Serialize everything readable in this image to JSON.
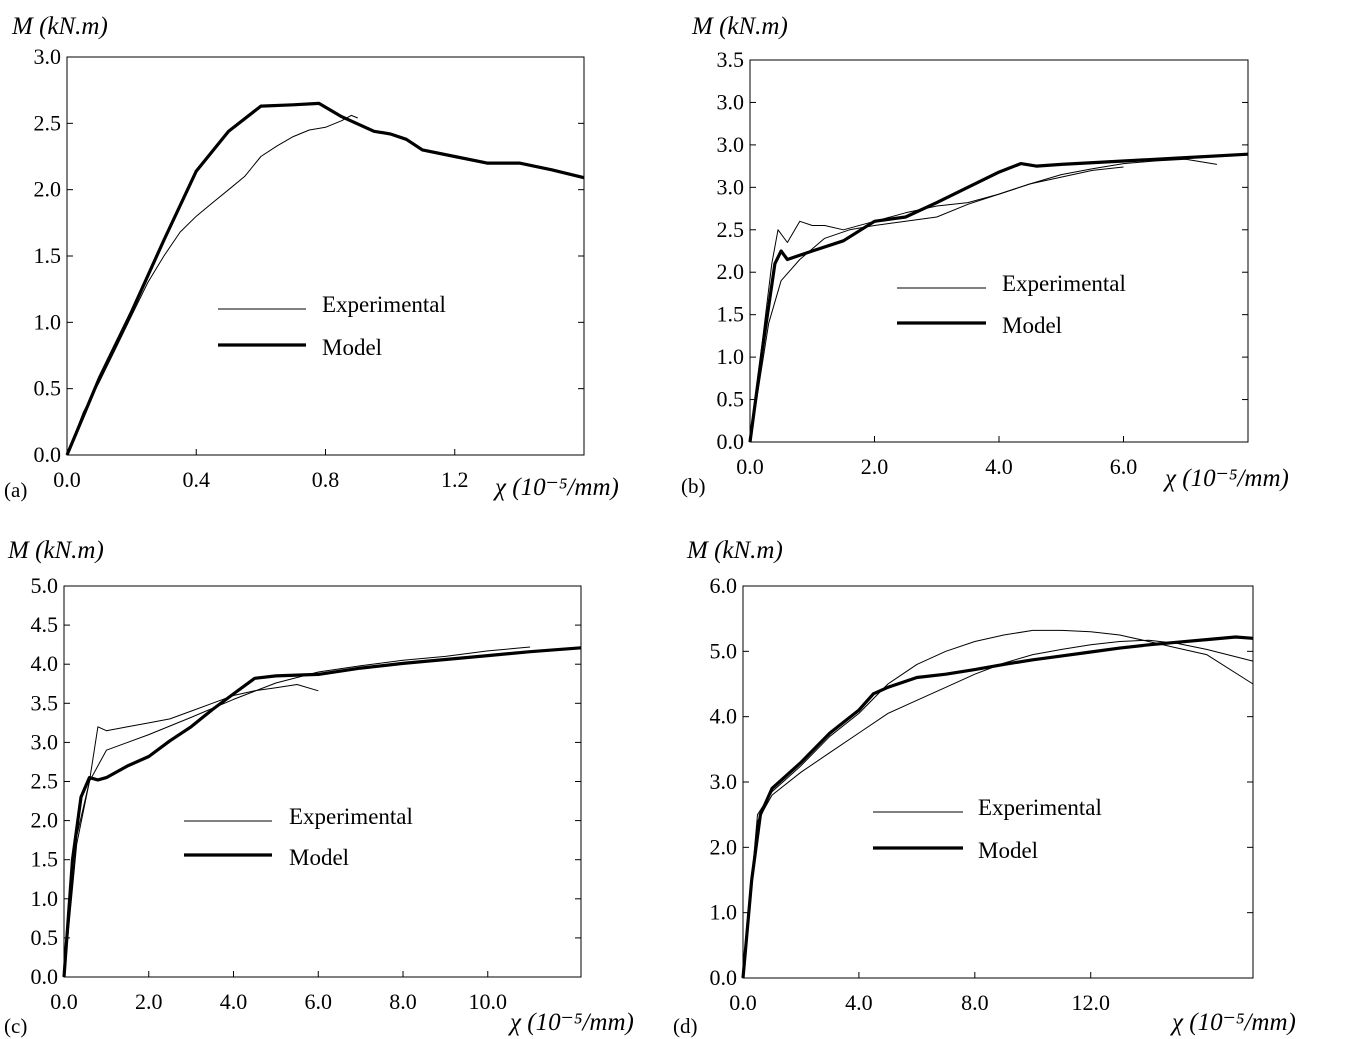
{
  "figure": {
    "panels": [
      {
        "id": "a",
        "panel_label": "(a)",
        "y_label": "M (kN.m)",
        "x_label": "χ (10⁻⁵/mm)",
        "x_ticks": [
          "0.0",
          "0.4",
          "0.8",
          "1.2"
        ],
        "y_ticks": [
          "0.0",
          "0.5",
          "1.0",
          "1.5",
          "2.0",
          "2.5",
          "3.0"
        ],
        "legend": [
          "Experimental",
          "Model"
        ]
      },
      {
        "id": "b",
        "panel_label": "(b)",
        "y_label": "M (kN.m)",
        "x_label": "χ (10⁻⁵/mm)",
        "x_ticks": [
          "0.0",
          "2.0",
          "4.0",
          "6.0"
        ],
        "y_ticks": [
          "0.0",
          "0.5",
          "1.0",
          "1.5",
          "2.0",
          "2.5",
          "3.0",
          "3.0",
          "3.0",
          "3.5"
        ],
        "legend": [
          "Experimental",
          "Model"
        ]
      },
      {
        "id": "c",
        "panel_label": "(c)",
        "y_label": "M (kN.m)",
        "x_label": "χ (10⁻⁵/mm)",
        "x_ticks": [
          "0.0",
          "2.0",
          "4.0",
          "6.0",
          "8.0",
          "10.0"
        ],
        "y_ticks": [
          "0.0",
          "0.5",
          "1.0",
          "1.5",
          "2.0",
          "2.5",
          "3.0",
          "3.5",
          "4.0",
          "4.5",
          "5.0"
        ],
        "legend": [
          "Experimental",
          "Model"
        ]
      },
      {
        "id": "d",
        "panel_label": "(d)",
        "y_label": "M (kN.m)",
        "x_label": "χ (10⁻⁵/mm)",
        "x_ticks": [
          "0.0",
          "4.0",
          "8.0",
          "12.0"
        ],
        "y_ticks": [
          "0.0",
          "1.0",
          "2.0",
          "3.0",
          "4.0",
          "5.0",
          "6.0"
        ],
        "legend": [
          "Experimental",
          "Model"
        ]
      }
    ]
  },
  "chart_data": [
    {
      "type": "line",
      "panel": "(a)",
      "xlabel": "χ (10⁻⁵/mm)",
      "ylabel": "M (kN.m)",
      "xlim": [
        0,
        1.6
      ],
      "ylim": [
        0,
        3.0
      ],
      "grid": false,
      "legend_position": "center-left",
      "series": [
        {
          "name": "Experimental",
          "x": [
            0,
            0.05,
            0.1,
            0.15,
            0.2,
            0.25,
            0.3,
            0.35,
            0.4,
            0.45,
            0.5,
            0.55,
            0.6,
            0.65,
            0.7,
            0.75,
            0.8,
            0.85,
            0.88,
            0.9
          ],
          "y": [
            0,
            0.32,
            0.55,
            0.8,
            1.05,
            1.3,
            1.5,
            1.68,
            1.8,
            1.9,
            2.0,
            2.1,
            2.25,
            2.33,
            2.4,
            2.45,
            2.47,
            2.52,
            2.56,
            2.54
          ]
        },
        {
          "name": "Model",
          "x": [
            0,
            0.1,
            0.2,
            0.3,
            0.4,
            0.5,
            0.6,
            0.7,
            0.78,
            0.85,
            0.95,
            1.0,
            1.05,
            1.1,
            1.2,
            1.3,
            1.4,
            1.5,
            1.6
          ],
          "y": [
            0,
            0.58,
            1.08,
            1.62,
            2.14,
            2.44,
            2.63,
            2.64,
            2.65,
            2.55,
            2.44,
            2.42,
            2.38,
            2.3,
            2.25,
            2.2,
            2.2,
            2.15,
            2.09
          ]
        }
      ]
    },
    {
      "type": "line",
      "panel": "(b)",
      "xlabel": "χ (10⁻⁵/mm)",
      "ylabel": "M (kN.m)",
      "xlim": [
        0,
        8.0
      ],
      "ylim": [
        0,
        4.5
      ],
      "grid": false,
      "legend_position": "center-right",
      "series": [
        {
          "name": "Experimental",
          "x": [
            0,
            0.2,
            0.35,
            0.45,
            0.6,
            0.8,
            1.0,
            1.2,
            1.5,
            2.0,
            2.5,
            3.0,
            3.5,
            4.0,
            4.5,
            5.0,
            5.5,
            6.0
          ],
          "y": [
            0,
            1.2,
            2.1,
            2.5,
            2.35,
            2.6,
            2.55,
            2.55,
            2.5,
            2.6,
            2.7,
            2.78,
            2.82,
            2.92,
            3.04,
            3.12,
            3.2,
            3.24
          ]
        },
        {
          "name": "Experimental",
          "x": [
            0,
            0.3,
            0.5,
            0.8,
            1.2,
            1.6,
            2.0,
            2.5,
            3.0,
            3.5,
            4.0,
            4.5,
            5.0,
            5.5,
            6.0,
            6.5,
            7.0,
            7.5
          ],
          "y": [
            0,
            1.4,
            1.9,
            2.15,
            2.4,
            2.5,
            2.55,
            2.6,
            2.65,
            2.8,
            2.92,
            3.04,
            3.15,
            3.22,
            3.28,
            3.31,
            3.33,
            3.27
          ]
        },
        {
          "name": "Model",
          "x": [
            0,
            0.2,
            0.4,
            0.5,
            0.6,
            0.8,
            1.0,
            1.5,
            2.0,
            2.5,
            3.0,
            3.5,
            4.0,
            4.35,
            4.6,
            5.0,
            6.0,
            7.0,
            8.0
          ],
          "y": [
            0,
            1.1,
            2.1,
            2.25,
            2.15,
            2.2,
            2.25,
            2.37,
            2.6,
            2.65,
            2.82,
            3.0,
            3.18,
            3.28,
            3.25,
            3.27,
            3.31,
            3.35,
            3.39
          ]
        }
      ]
    },
    {
      "type": "line",
      "panel": "(c)",
      "xlabel": "χ (10⁻⁵/mm)",
      "ylabel": "M (kN.m)",
      "xlim": [
        0,
        12.2
      ],
      "ylim": [
        0,
        5.0
      ],
      "grid": false,
      "legend_position": "center",
      "series": [
        {
          "name": "Experimental",
          "x": [
            0,
            0.3,
            0.6,
            0.8,
            1.0,
            1.5,
            2.0,
            2.5,
            3.0,
            3.5,
            4.0,
            4.5,
            5.0,
            5.5,
            6.0
          ],
          "y": [
            0,
            1.8,
            2.5,
            3.2,
            3.15,
            3.2,
            3.25,
            3.3,
            3.4,
            3.5,
            3.6,
            3.66,
            3.7,
            3.74,
            3.66
          ]
        },
        {
          "name": "Experimental",
          "x": [
            0,
            0.3,
            0.6,
            1.0,
            2.0,
            3.0,
            4.0,
            5.0,
            6.0,
            7.0,
            8.0,
            9.0,
            10.0,
            11.0
          ],
          "y": [
            0,
            1.7,
            2.5,
            2.9,
            3.1,
            3.32,
            3.55,
            3.76,
            3.9,
            3.98,
            4.05,
            4.1,
            4.17,
            4.22
          ]
        },
        {
          "name": "Model",
          "x": [
            0,
            0.2,
            0.4,
            0.6,
            0.8,
            1.0,
            1.5,
            2.0,
            2.5,
            3.0,
            3.5,
            4.0,
            4.5,
            5.0,
            6.0,
            7.0,
            8.0,
            9.0,
            10.0,
            11.0,
            12.2
          ],
          "y": [
            0,
            1.5,
            2.3,
            2.55,
            2.52,
            2.55,
            2.7,
            2.82,
            3.02,
            3.2,
            3.42,
            3.62,
            3.82,
            3.85,
            3.87,
            3.95,
            4.01,
            4.06,
            4.11,
            4.16,
            4.21
          ]
        }
      ]
    },
    {
      "type": "line",
      "panel": "(d)",
      "xlabel": "χ (10⁻⁵/mm)",
      "ylabel": "M (kN.m)",
      "xlim": [
        0,
        17.6
      ],
      "ylim": [
        0,
        6.0
      ],
      "grid": false,
      "legend_position": "center",
      "series": [
        {
          "name": "Experimental",
          "x": [
            0,
            0.5,
            1.0,
            2.0,
            3.0,
            4.0,
            5.0,
            6.0,
            7.0,
            8.0,
            9.0,
            10.0,
            11.0,
            12.0,
            13.0,
            14.0,
            15.0,
            16.0,
            17.6
          ],
          "y": [
            0,
            2.5,
            2.85,
            3.25,
            3.7,
            4.05,
            4.5,
            4.8,
            5.0,
            5.15,
            5.25,
            5.32,
            5.32,
            5.3,
            5.25,
            5.15,
            5.05,
            4.95,
            4.5
          ]
        },
        {
          "name": "Experimental",
          "x": [
            0,
            0.5,
            1.0,
            2.0,
            3.0,
            4.0,
            5.0,
            6.0,
            7.0,
            8.0,
            9.0,
            10.0,
            11.0,
            12.0,
            13.0,
            14.0,
            15.0,
            16.0,
            17.6
          ],
          "y": [
            0,
            2.4,
            2.8,
            3.15,
            3.45,
            3.75,
            4.05,
            4.25,
            4.45,
            4.65,
            4.82,
            4.95,
            5.03,
            5.1,
            5.15,
            5.17,
            5.12,
            5.03,
            4.85
          ]
        },
        {
          "name": "Model",
          "x": [
            0,
            0.3,
            0.6,
            1.0,
            2.0,
            3.0,
            4.0,
            4.5,
            5.0,
            6.0,
            7.0,
            8.0,
            9.0,
            10.0,
            11.0,
            12.0,
            13.0,
            14.0,
            15.0,
            16.0,
            17.0,
            17.6
          ],
          "y": [
            0,
            1.5,
            2.5,
            2.9,
            3.3,
            3.75,
            4.1,
            4.35,
            4.45,
            4.6,
            4.65,
            4.72,
            4.8,
            4.87,
            4.93,
            4.99,
            5.05,
            5.1,
            5.14,
            5.18,
            5.22,
            5.2
          ]
        }
      ]
    }
  ]
}
